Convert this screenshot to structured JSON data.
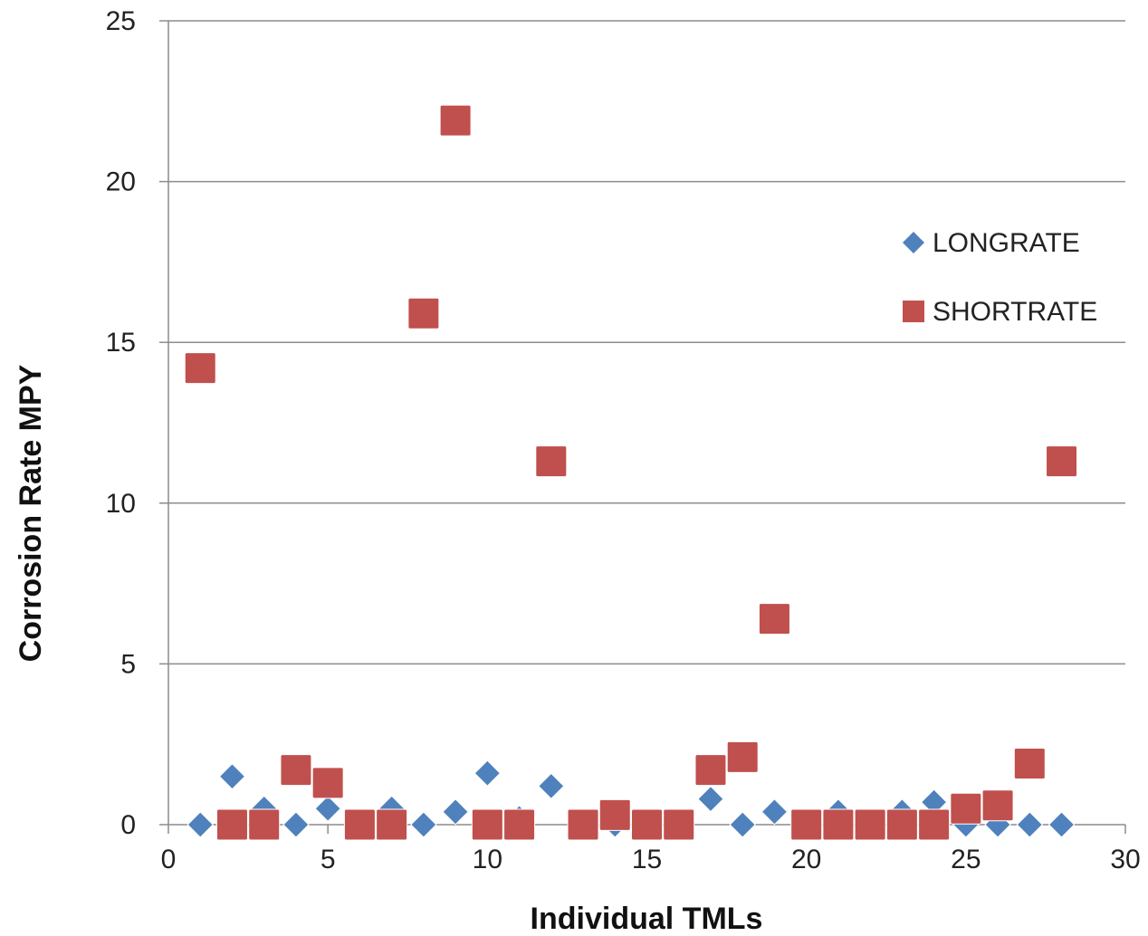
{
  "chart_data": {
    "type": "scatter",
    "xlabel": "Individual TMLs",
    "ylabel": "Corrosion Rate MPY",
    "xlim": [
      0,
      30
    ],
    "ylim": [
      0,
      25
    ],
    "xticks": [
      "0",
      "5",
      "10",
      "15",
      "20",
      "25",
      "30"
    ],
    "yticks": [
      "0",
      "5",
      "10",
      "15",
      "20",
      "25"
    ],
    "grid": "horizontal",
    "legend_position": "right",
    "series": [
      {
        "name": "LONGRATE",
        "marker": "diamond",
        "color": "#4F81BD",
        "points": [
          [
            1,
            0.0
          ],
          [
            2,
            1.5
          ],
          [
            3,
            0.5
          ],
          [
            4,
            0.0
          ],
          [
            5,
            0.5
          ],
          [
            6,
            0.0
          ],
          [
            7,
            0.5
          ],
          [
            8,
            0.0
          ],
          [
            9,
            0.4
          ],
          [
            10,
            1.6
          ],
          [
            11,
            0.2
          ],
          [
            12,
            1.2
          ],
          [
            13,
            0.0
          ],
          [
            14,
            0.0
          ],
          [
            15,
            0.0
          ],
          [
            16,
            0.0
          ],
          [
            17,
            0.8
          ],
          [
            18,
            0.0
          ],
          [
            19,
            0.4
          ],
          [
            20,
            0.0
          ],
          [
            21,
            0.4
          ],
          [
            22,
            0.0
          ],
          [
            23,
            0.4
          ],
          [
            24,
            0.7
          ],
          [
            25,
            0.0
          ],
          [
            26,
            0.0
          ],
          [
            27,
            0.0
          ],
          [
            28,
            0.0
          ]
        ]
      },
      {
        "name": "SHORTRATE",
        "marker": "square",
        "color": "#C0504D",
        "points": [
          [
            1,
            14.2
          ],
          [
            2,
            0.0
          ],
          [
            3,
            0.0
          ],
          [
            4,
            1.7
          ],
          [
            5,
            1.3
          ],
          [
            6,
            0.0
          ],
          [
            7,
            0.0
          ],
          [
            8,
            15.9
          ],
          [
            9,
            21.9
          ],
          [
            10,
            0.0
          ],
          [
            11,
            0.0
          ],
          [
            12,
            11.3
          ],
          [
            13,
            0.0
          ],
          [
            14,
            0.3
          ],
          [
            15,
            0.0
          ],
          [
            16,
            0.0
          ],
          [
            17,
            1.7
          ],
          [
            18,
            2.1
          ],
          [
            19,
            6.4
          ],
          [
            20,
            0.0
          ],
          [
            21,
            0.0
          ],
          [
            22,
            0.0
          ],
          [
            23,
            0.0
          ],
          [
            24,
            0.0
          ],
          [
            25,
            0.5
          ],
          [
            26,
            0.6
          ],
          [
            27,
            1.9
          ],
          [
            28,
            11.3
          ]
        ]
      }
    ]
  }
}
